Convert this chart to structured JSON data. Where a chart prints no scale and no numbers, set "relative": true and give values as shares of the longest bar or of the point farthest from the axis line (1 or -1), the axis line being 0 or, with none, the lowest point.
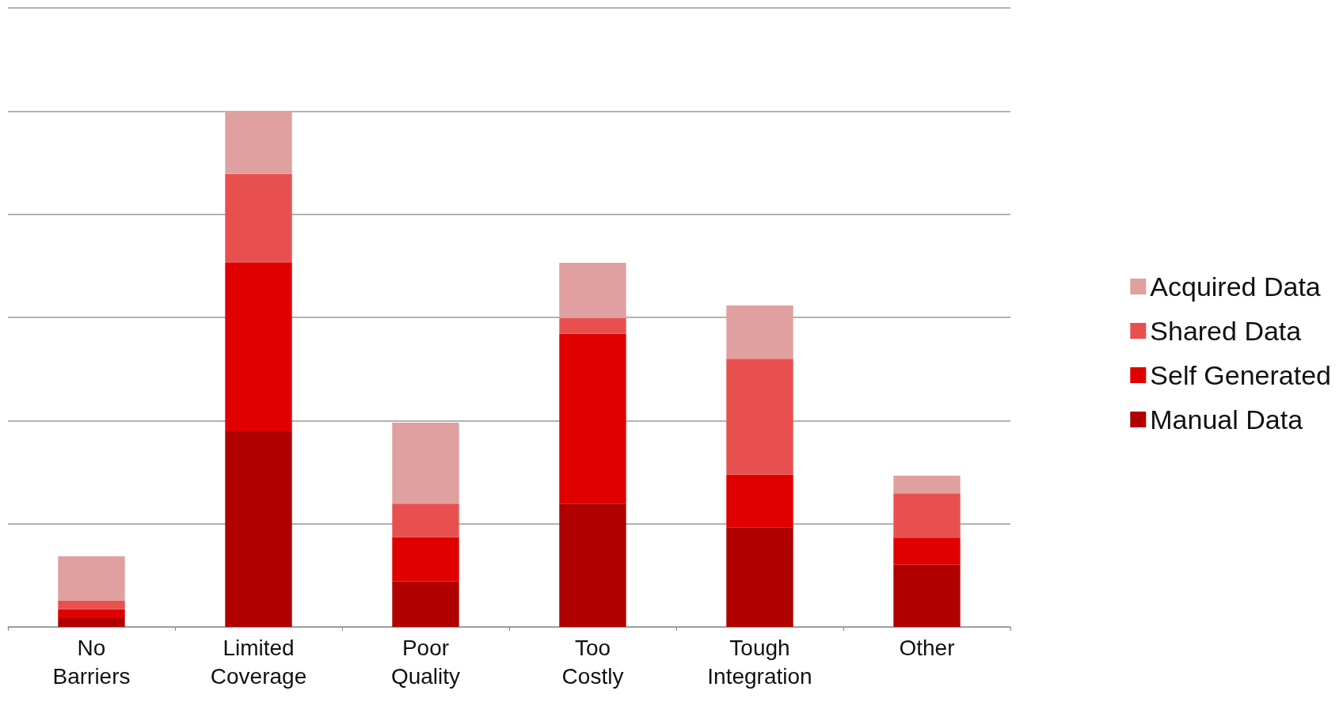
{
  "chart_data": {
    "type": "bar",
    "stacked": true,
    "relative": true,
    "grid": "y",
    "legend": "right",
    "categories": [
      "No Barriers",
      "Limited Coverage",
      "Poor Quality",
      "Too Costly",
      "Tough Integration",
      "Other"
    ],
    "series": [
      {
        "name": "Manual Data",
        "color": "#b00000",
        "values": [
          0.017,
          0.379,
          0.088,
          0.239,
          0.193,
          0.12
        ]
      },
      {
        "name": "Self Generated",
        "color": "#e00000",
        "values": [
          0.017,
          0.327,
          0.086,
          0.329,
          0.102,
          0.053
        ]
      },
      {
        "name": "Shared Data",
        "color": "#e85050",
        "values": [
          0.017,
          0.172,
          0.065,
          0.031,
          0.225,
          0.086
        ]
      },
      {
        "name": "Acquired Data",
        "color": "#e0a0a0",
        "values": [
          0.086,
          0.122,
          0.157,
          0.107,
          0.103,
          0.034
        ]
      }
    ]
  }
}
